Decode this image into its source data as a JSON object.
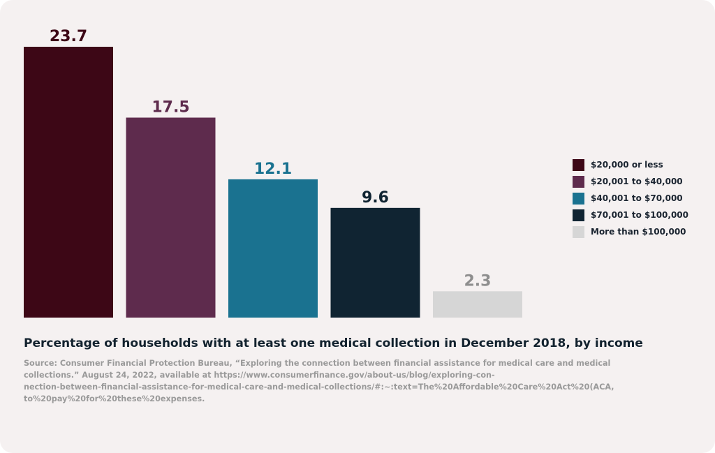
{
  "chart_data": {
    "type": "bar",
    "title": "Percentage of households with at least one medical collection in December 2018, by income",
    "categories": [
      "$20,000 or less",
      "$20,001 to $40,000",
      "$40,001 to $70,000",
      "$70,001 to $100,000",
      "More than $100,000"
    ],
    "values": [
      23.7,
      17.5,
      12.1,
      9.6,
      2.3
    ],
    "value_labels": [
      "23.7",
      "17.5",
      "12.1",
      "9.6",
      "2.3"
    ],
    "colors": [
      "#3d0716",
      "#5e2b4d",
      "#1a7290",
      "#102432",
      "#d6d6d6"
    ],
    "label_colors": [
      "#3d0716",
      "#5e2b4d",
      "#1a7290",
      "#102432",
      "#8e8e8e"
    ],
    "ylim": [
      0,
      23.7
    ],
    "xlabel": "",
    "ylabel": "",
    "grid": false,
    "legend_position": "right"
  },
  "source_lines": [
    "Source: Consumer Financial Protection Bureau, “Exploring the connection between financial assistance for medical care and medical",
    "collections.” August 24, 2022, available at https://www.consumerfinance.gov/about-us/blog/exploring-con-",
    "nection-between-financial-assistance-for-medical-care-and-medical-collections/#:~:text=The%20Affordable%20Care%20Act%20(ACA,",
    "to%20pay%20for%20these%20expenses."
  ]
}
